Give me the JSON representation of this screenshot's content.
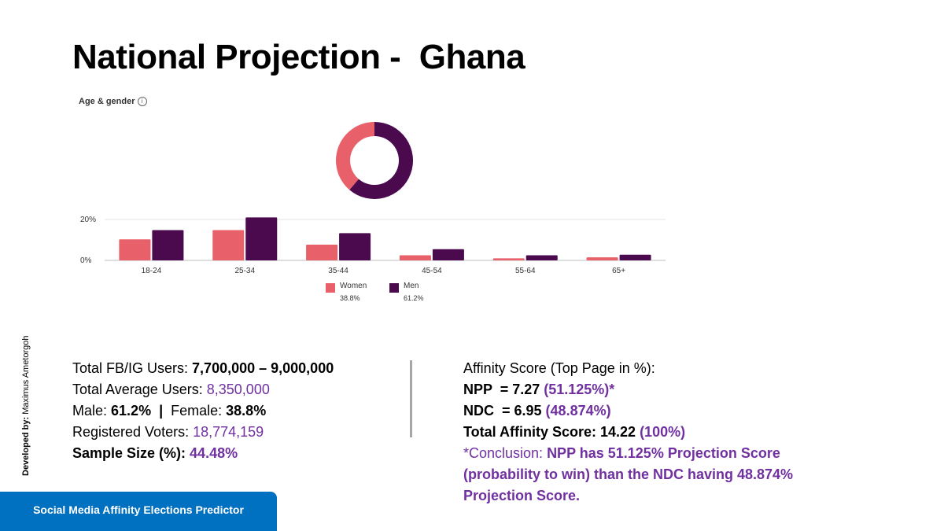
{
  "title": "National Projection -  Ghana",
  "chart_label": "Age & gender",
  "info_icon": "i",
  "chart_data": [
    {
      "type": "pie",
      "labels": [
        "Women",
        "Men"
      ],
      "values": [
        38.8,
        61.2
      ],
      "colors": [
        "#e8616a",
        "#4a0a4d"
      ]
    },
    {
      "type": "bar",
      "categories": [
        "18-24",
        "25-34",
        "35-44",
        "45-54",
        "55-64",
        "65+"
      ],
      "series": [
        {
          "name": "Women",
          "values": [
            10.3,
            14.8,
            7.7,
            2.5,
            1.0,
            1.5
          ],
          "color": "#e8616a"
        },
        {
          "name": "Men",
          "values": [
            14.8,
            21.0,
            13.3,
            5.5,
            2.5,
            2.8
          ],
          "color": "#4a0a4d"
        }
      ],
      "yticks": [
        "0%",
        "20%"
      ],
      "ylim": [
        0,
        20
      ],
      "grid": true,
      "legend": [
        {
          "name": "Women",
          "pct": "38.8%"
        },
        {
          "name": "Men",
          "pct": "61.2%"
        }
      ],
      "legend_position": "bottom-center"
    }
  ],
  "stats_left": {
    "total_users_label": "Total FB/IG Users: ",
    "total_users_value": "7,700,000 – 9,000,000",
    "avg_users_label": "Total Average Users: ",
    "avg_users_value": "8,350,000",
    "male_label": "Male: ",
    "male_value": "61.2%",
    "sep": "  |  ",
    "female_label": "Female: ",
    "female_value": "38.8%",
    "voters_label": "Registered Voters: ",
    "voters_value": "18,774,159",
    "sample_label": "Sample Size (%): ",
    "sample_value": "44.48%"
  },
  "stats_right": {
    "heading": "Affinity Score (Top Page in %):",
    "npp_label": "NPP  = 7.27 ",
    "npp_pct": "(51.125%)*",
    "ndc_label": "NDC  = 6.95 ",
    "ndc_pct": "(48.874%)",
    "total_label": "Total Affinity Score: 14.22 ",
    "total_pct": "(100%)",
    "conclusion_prefix": "*Conclusion: ",
    "conclusion_text": "NPP has 51.125% Projection Score (probability to win) than the NDC having 48.874% Projection Score."
  },
  "developer_label": "Developed by: ",
  "developer_name": "Maximus Ametorgoh",
  "footer": "Social Media Affinity Elections Predictor"
}
